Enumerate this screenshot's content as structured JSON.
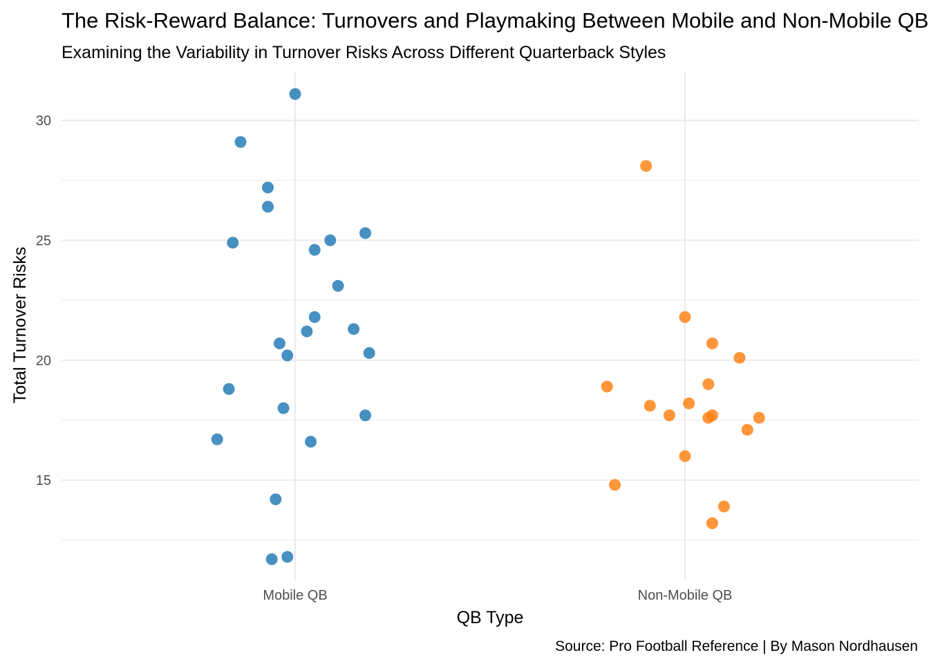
{
  "chart_data": {
    "type": "scatter",
    "title": "The Risk-Reward Balance: Turnovers and Playmaking Between Mobile and Non-Mobile QBs",
    "subtitle": "Examining the Variability in Turnover Risks Across Different Quarterback Styles",
    "xlabel": "QB Type",
    "ylabel": "Total Turnover Risks",
    "caption": "Source: Pro Football Reference | By Mason Nordhausen",
    "categories": [
      "Mobile QB",
      "Non-Mobile QB"
    ],
    "ylim": [
      10.85,
      32.05
    ],
    "yticks": [
      15,
      20,
      25,
      30
    ],
    "grid": true,
    "legend": "none",
    "jittered": true,
    "series": [
      {
        "category": "Mobile QB",
        "color": "#1f77b4",
        "points": [
          {
            "x": 0.0,
            "y": 31.1
          },
          {
            "x": -0.14,
            "y": 29.1
          },
          {
            "x": -0.07,
            "y": 27.2
          },
          {
            "x": -0.07,
            "y": 26.4
          },
          {
            "x": -0.16,
            "y": 24.9
          },
          {
            "x": 0.09,
            "y": 25.0
          },
          {
            "x": 0.18,
            "y": 25.3
          },
          {
            "x": 0.05,
            "y": 24.6
          },
          {
            "x": 0.11,
            "y": 23.1
          },
          {
            "x": 0.05,
            "y": 21.8
          },
          {
            "x": 0.03,
            "y": 21.2
          },
          {
            "x": 0.15,
            "y": 21.3
          },
          {
            "x": -0.04,
            "y": 20.7
          },
          {
            "x": -0.02,
            "y": 20.2
          },
          {
            "x": 0.19,
            "y": 20.3
          },
          {
            "x": -0.17,
            "y": 18.8
          },
          {
            "x": -0.03,
            "y": 18.0
          },
          {
            "x": 0.18,
            "y": 17.7
          },
          {
            "x": -0.2,
            "y": 16.7
          },
          {
            "x": 0.04,
            "y": 16.6
          },
          {
            "x": -0.05,
            "y": 14.2
          },
          {
            "x": -0.06,
            "y": 11.7
          },
          {
            "x": -0.02,
            "y": 11.8
          }
        ]
      },
      {
        "category": "Non-Mobile QB",
        "color": "#ff7f0e",
        "points": [
          {
            "x": -0.1,
            "y": 28.1
          },
          {
            "x": 0.0,
            "y": 21.8
          },
          {
            "x": 0.07,
            "y": 20.7
          },
          {
            "x": 0.14,
            "y": 20.1
          },
          {
            "x": -0.2,
            "y": 18.9
          },
          {
            "x": 0.06,
            "y": 19.0
          },
          {
            "x": -0.09,
            "y": 18.1
          },
          {
            "x": 0.01,
            "y": 18.2
          },
          {
            "x": -0.04,
            "y": 17.7
          },
          {
            "x": 0.06,
            "y": 17.6
          },
          {
            "x": 0.07,
            "y": 17.7
          },
          {
            "x": 0.19,
            "y": 17.6
          },
          {
            "x": 0.16,
            "y": 17.1
          },
          {
            "x": 0.0,
            "y": 16.0
          },
          {
            "x": -0.18,
            "y": 14.8
          },
          {
            "x": 0.1,
            "y": 13.9
          },
          {
            "x": 0.07,
            "y": 13.2
          }
        ]
      }
    ]
  }
}
